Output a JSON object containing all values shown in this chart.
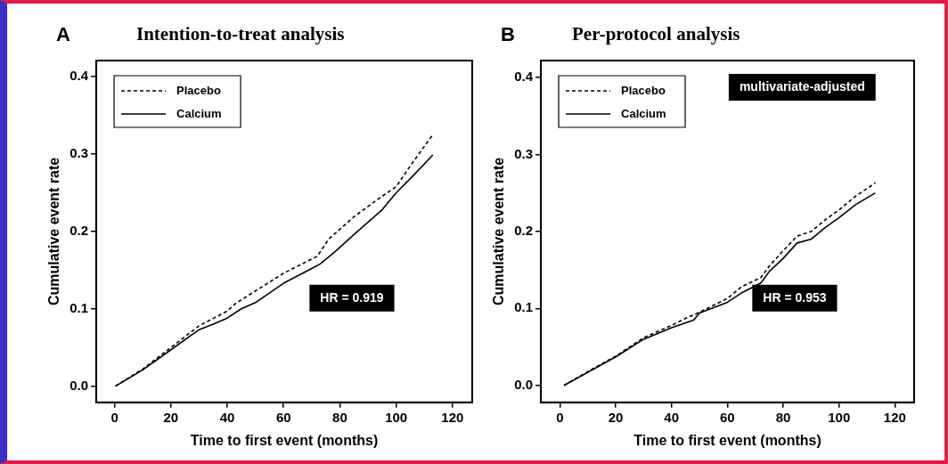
{
  "chart_data": [
    {
      "type": "line",
      "title": "Intention-to-treat analysis",
      "xlabel": "Time to first event (months)",
      "ylabel": "Cumulative event rate",
      "annotations": [
        "A",
        "HR = 0.919"
      ],
      "legend": "top left",
      "grid": false,
      "xlim": [
        -6.5,
        127
      ],
      "xticks": [
        0,
        20,
        40,
        60,
        80,
        100,
        120
      ],
      "ylim": [
        -0.021,
        0.421
      ],
      "yticks": [
        {
          "value": 0,
          "label": "0.0"
        },
        0.1,
        0.2,
        0.3,
        0.4
      ],
      "marker": "none",
      "series": [
        {
          "name": "Placebo",
          "color": "#000000",
          "line_style": "dashed",
          "x": [
            0.3,
            10,
            20,
            30,
            40,
            43,
            50,
            60,
            72,
            76,
            85,
            94,
            100,
            106,
            113
          ],
          "values": [
            0,
            0.022,
            0.05,
            0.078,
            0.097,
            0.107,
            0.123,
            0.146,
            0.168,
            0.19,
            0.219,
            0.243,
            0.258,
            0.29,
            0.325
          ]
        },
        {
          "name": "Calcium",
          "color": "#000000",
          "line_style": "solid",
          "x": [
            0.3,
            10,
            20,
            30,
            35,
            40,
            45,
            50,
            60,
            70,
            73,
            78,
            85,
            95,
            100,
            106,
            113
          ],
          "values": [
            0,
            0.021,
            0.047,
            0.073,
            0.08,
            0.088,
            0.1,
            0.108,
            0.133,
            0.152,
            0.158,
            0.173,
            0.196,
            0.228,
            0.25,
            0.272,
            0.299
          ]
        }
      ]
    },
    {
      "type": "line",
      "title": "Per-protocol analysis",
      "xlabel": "Time to first event (months)",
      "ylabel": "Cumulative event rate",
      "annotations": [
        "B",
        "multivariate-adjusted",
        "HR = 0.953"
      ],
      "legend": "top left",
      "grid": false,
      "xlim": [
        -6.8,
        126.9
      ],
      "xticks": [
        0,
        20,
        40,
        60,
        80,
        100,
        120
      ],
      "ylim": [
        -0.022,
        0.422
      ],
      "yticks": [
        {
          "value": 0,
          "label": "0.0"
        },
        0.1,
        0.2,
        0.3,
        0.4
      ],
      "marker": "none",
      "series": [
        {
          "name": "Placebo",
          "color": "#000000",
          "line_style": "dashed",
          "x": [
            1.5,
            10,
            20,
            30,
            40,
            45,
            50,
            60,
            65,
            72,
            75,
            80,
            85,
            90,
            95,
            100,
            106,
            113
          ],
          "values": [
            0,
            0.018,
            0.038,
            0.062,
            0.078,
            0.087,
            0.095,
            0.113,
            0.128,
            0.14,
            0.155,
            0.175,
            0.194,
            0.2,
            0.215,
            0.228,
            0.246,
            0.263
          ]
        },
        {
          "name": "Calcium",
          "color": "#000000",
          "line_style": "solid",
          "x": [
            1.5,
            10,
            20,
            30,
            40,
            48,
            50,
            60,
            65,
            72,
            75,
            80,
            85,
            90,
            95,
            100,
            106,
            113
          ],
          "values": [
            0,
            0.017,
            0.037,
            0.06,
            0.075,
            0.085,
            0.094,
            0.108,
            0.12,
            0.133,
            0.148,
            0.165,
            0.185,
            0.19,
            0.205,
            0.218,
            0.235,
            0.25
          ]
        }
      ]
    }
  ]
}
